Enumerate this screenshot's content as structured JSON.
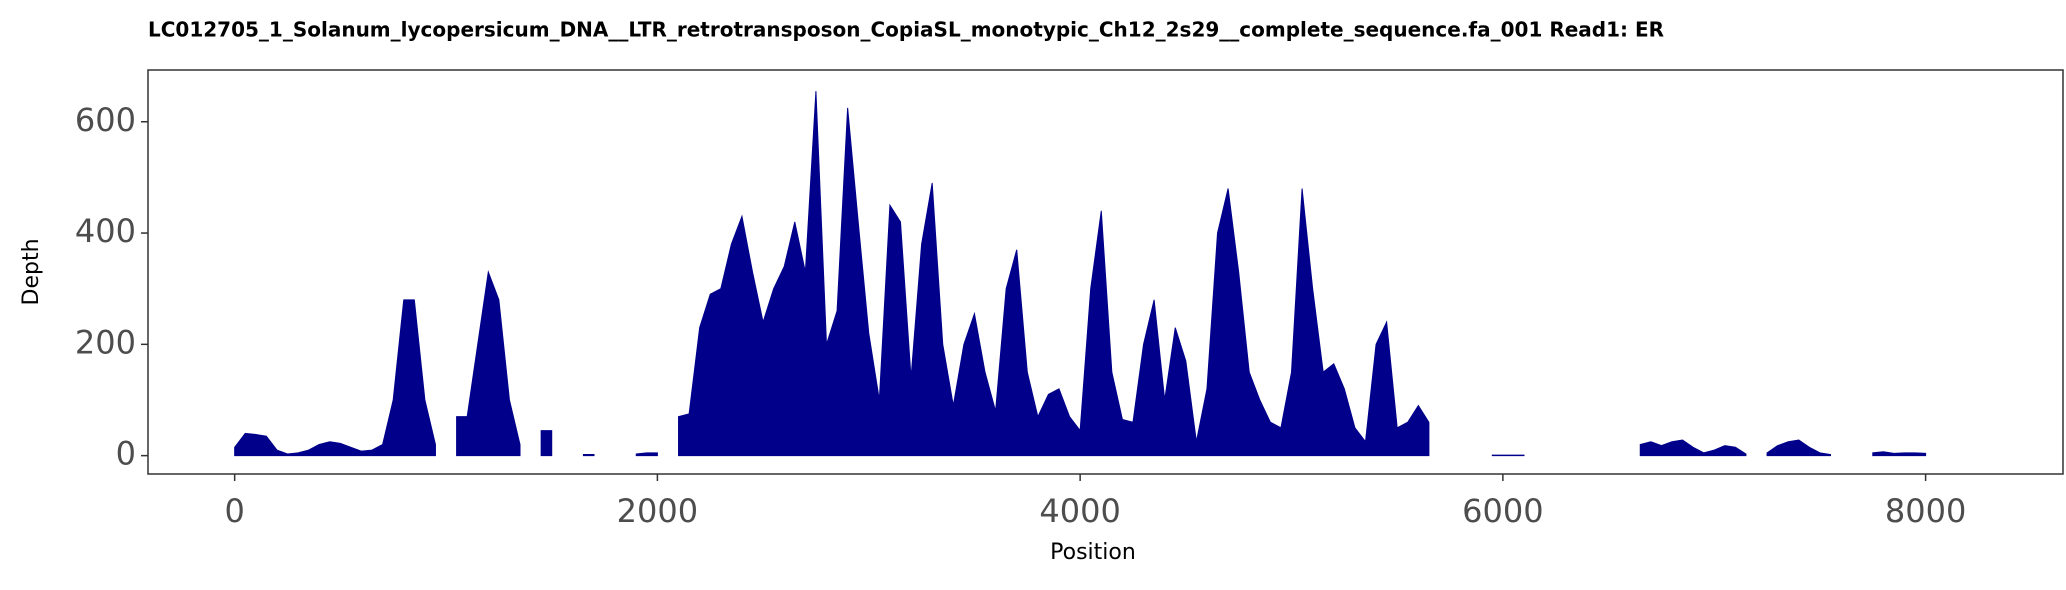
{
  "chart_data": {
    "type": "area",
    "title": "LC012705_1_Solanum_lycopersicum_DNA__LTR_retrotransposon_CopiaSL_monotypic_Ch12_2s29__complete_sequence.fa_001   Read1: ER",
    "x_label": "Position",
    "y_label": "Depth",
    "x": [
      0,
      50,
      100,
      150,
      200,
      250,
      300,
      350,
      400,
      450,
      500,
      550,
      600,
      650,
      700,
      750,
      800,
      850,
      900,
      950,
      1000,
      1050,
      1100,
      1150,
      1200,
      1250,
      1300,
      1350,
      1400,
      1450,
      1500,
      1550,
      1600,
      1650,
      1700,
      1750,
      1800,
      1850,
      1900,
      1950,
      2000,
      2050,
      2100,
      2150,
      2200,
      2250,
      2300,
      2350,
      2400,
      2450,
      2500,
      2550,
      2600,
      2650,
      2700,
      2750,
      2800,
      2850,
      2900,
      2950,
      3000,
      3050,
      3100,
      3150,
      3200,
      3250,
      3300,
      3350,
      3400,
      3450,
      3500,
      3550,
      3600,
      3650,
      3700,
      3750,
      3800,
      3850,
      3900,
      3950,
      4000,
      4050,
      4100,
      4150,
      4200,
      4250,
      4300,
      4350,
      4400,
      4450,
      4500,
      4550,
      4600,
      4650,
      4700,
      4750,
      4800,
      4850,
      4900,
      4950,
      5000,
      5050,
      5100,
      5150,
      5200,
      5250,
      5300,
      5350,
      5400,
      5450,
      5500,
      5550,
      5600,
      5650,
      5700,
      5750,
      5800,
      5850,
      5900,
      5950,
      6000,
      6050,
      6100,
      6150,
      6200,
      6250,
      6300,
      6350,
      6400,
      6450,
      6500,
      6550,
      6600,
      6650,
      6700,
      6750,
      6800,
      6850,
      6900,
      6950,
      7000,
      7050,
      7100,
      7150,
      7200,
      7250,
      7300,
      7350,
      7400,
      7450,
      7500,
      7550,
      7600,
      7650,
      7700,
      7750,
      7800,
      7850,
      7900,
      7950,
      8000
    ],
    "series": [
      {
        "color": "#00008b",
        "values": [
          15,
          40,
          38,
          35,
          10,
          3,
          5,
          10,
          20,
          25,
          22,
          15,
          8,
          10,
          20,
          100,
          280,
          280,
          100,
          20,
          null,
          70,
          70,
          200,
          330,
          280,
          100,
          20,
          null,
          45,
          45,
          null,
          null,
          2,
          2,
          null,
          null,
          null,
          3,
          5,
          5,
          null,
          70,
          75,
          230,
          290,
          300,
          380,
          430,
          330,
          240,
          300,
          340,
          420,
          330,
          655,
          200,
          260,
          625,
          420,
          220,
          100,
          450,
          420,
          140,
          380,
          490,
          200,
          90,
          200,
          255,
          150,
          80,
          300,
          370,
          150,
          70,
          110,
          120,
          70,
          45,
          300,
          440,
          150,
          65,
          60,
          200,
          280,
          100,
          230,
          170,
          25,
          120,
          400,
          480,
          330,
          150,
          100,
          60,
          50,
          150,
          480,
          300,
          150,
          165,
          120,
          50,
          25,
          200,
          240,
          50,
          60,
          90,
          60,
          null,
          null,
          null,
          null,
          null,
          1,
          1,
          1,
          1,
          null,
          null,
          null,
          null,
          null,
          null,
          null,
          null,
          null,
          null,
          20,
          25,
          18,
          25,
          28,
          15,
          5,
          10,
          18,
          15,
          3,
          null,
          5,
          18,
          25,
          28,
          15,
          5,
          2,
          null,
          null,
          null,
          5,
          7,
          4,
          5,
          5,
          4
        ]
      }
    ],
    "xlim": [
      -410,
      8650
    ],
    "ylim": [
      -33,
      693
    ],
    "xticks": [
      0,
      2000,
      4000,
      6000,
      8000
    ],
    "yticks": [
      0,
      200,
      400,
      600
    ]
  }
}
